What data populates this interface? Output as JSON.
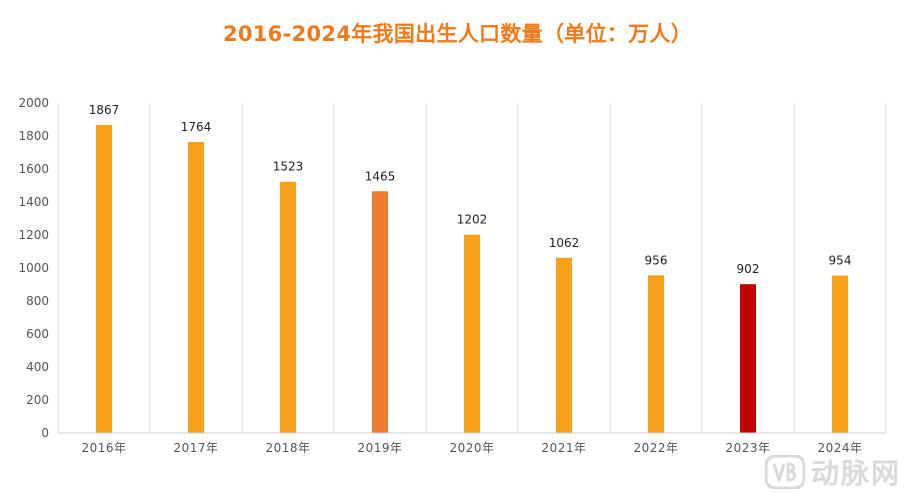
{
  "chart_data": {
    "type": "bar",
    "title": "2016-2024年我国出生人口数量（单位：万人）",
    "categories": [
      "2016年",
      "2017年",
      "2018年",
      "2019年",
      "2020年",
      "2021年",
      "2022年",
      "2023年",
      "2024年"
    ],
    "values": [
      1867,
      1764,
      1523,
      1465,
      1202,
      1062,
      956,
      902,
      954
    ],
    "ylim": [
      0,
      2000
    ],
    "yticks": [
      0,
      200,
      400,
      600,
      800,
      1000,
      1200,
      1400,
      1600,
      1800,
      2000
    ],
    "grid": "vertical-category-dividers",
    "bar_colors": [
      "#f7a11a",
      "#f7a11a",
      "#f7a11a",
      "#ed7d31",
      "#f7a11a",
      "#f7a11a",
      "#f7a11a",
      "#c00000",
      "#f7a11a"
    ],
    "title_color": "#ee7a1c"
  },
  "watermark": {
    "text": "动脉网",
    "logo": "vb-logo-icon"
  }
}
